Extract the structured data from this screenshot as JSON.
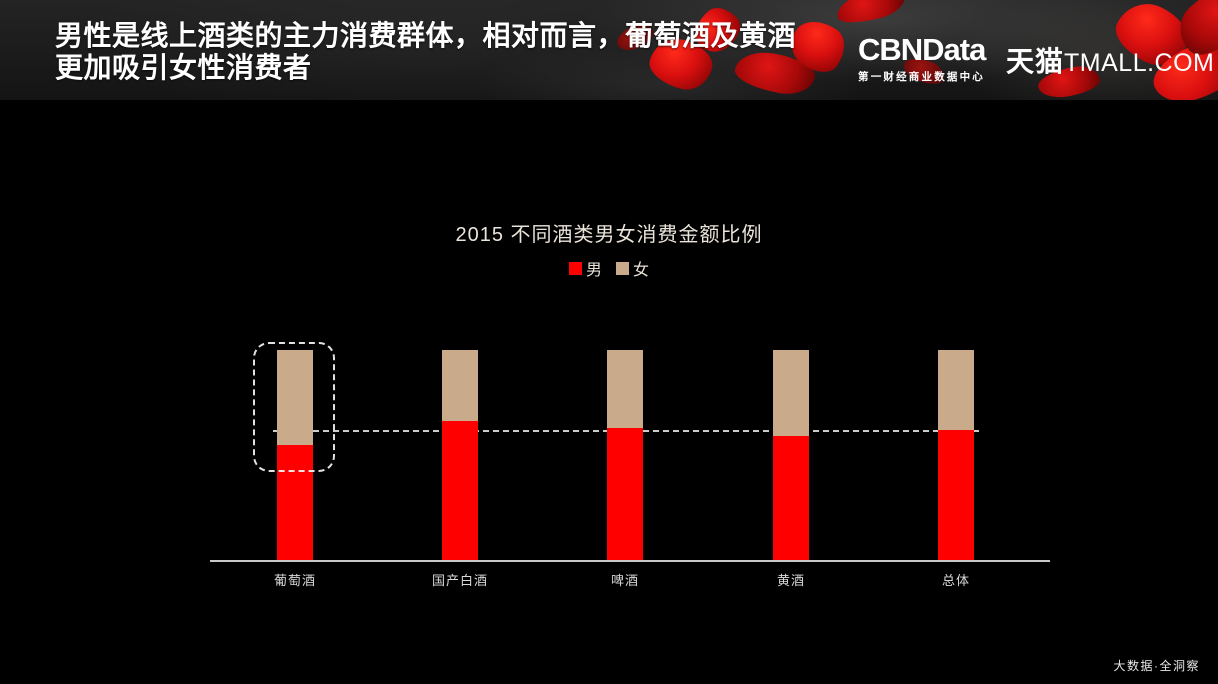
{
  "header": {
    "title_line1": "男性是线上酒类的主力消费群体，相对而言，葡萄酒及黄酒",
    "title_line2": "更加吸引女性消费者",
    "cbndata_logo": "CBNData",
    "cbndata_subtitle": "第一财经商业数据中心",
    "tmall_logo_cn": "天猫",
    "tmall_logo_en": "TMALL.COM"
  },
  "chart": {
    "title": "2015 不同酒类男女消费金额比例"
  },
  "chart_data": {
    "type": "bar",
    "stacked": true,
    "unit": "percent",
    "title": "2015 不同酒类男女消费金额比例",
    "categories": [
      "葡萄酒",
      "国产白酒",
      "啤酒",
      "黄酒",
      "总体"
    ],
    "series": [
      {
        "name": "男",
        "color": "#ff0000",
        "values": [
          55,
          66,
          63,
          59,
          62
        ]
      },
      {
        "name": "女",
        "color": "#c9ab8c",
        "values": [
          45,
          34,
          37,
          41,
          38
        ]
      }
    ],
    "ylim": [
      0,
      100
    ],
    "grid": false,
    "y_axis_visible": false,
    "legend_position": "top",
    "reference_line": {
      "value": 62,
      "style": "dashed",
      "color": "#f0f0f0",
      "meaning": "总体男性占比"
    },
    "highlight": {
      "category": "葡萄酒",
      "style": "dashed-rounded-box"
    }
  },
  "footer": {
    "watermark": "大数据·全洞察"
  },
  "colors": {
    "male": "#ff0000",
    "female": "#c9ab8c",
    "background": "#000000",
    "header_background": "#1c1c1c",
    "headline_text": "#ffffff",
    "axis": "#c8c8c8",
    "petal_red": "#d90f0f"
  }
}
